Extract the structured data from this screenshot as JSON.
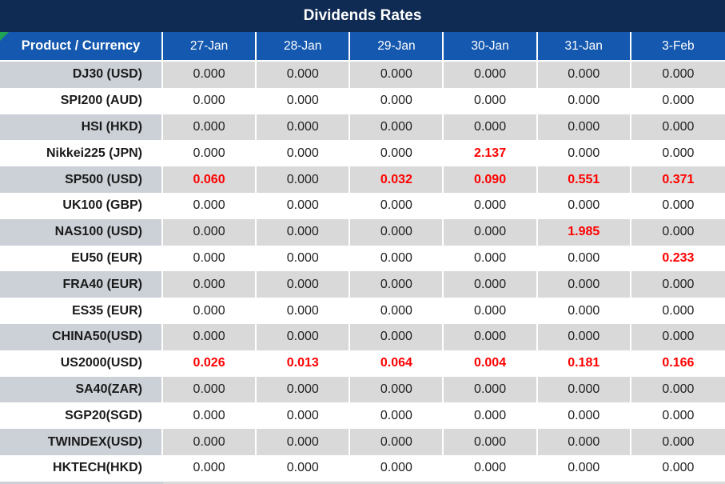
{
  "title": "Dividends Rates",
  "table": {
    "product_header": "Product / Currency",
    "date_columns": [
      "27-Jan",
      "28-Jan",
      "29-Jan",
      "30-Jan",
      "31-Jan",
      "3-Feb"
    ],
    "rows": [
      {
        "product": "DJ30 (USD)",
        "values": [
          "0.000",
          "0.000",
          "0.000",
          "0.000",
          "0.000",
          "0.000"
        ],
        "red": []
      },
      {
        "product": "SPI200 (AUD)",
        "values": [
          "0.000",
          "0.000",
          "0.000",
          "0.000",
          "0.000",
          "0.000"
        ],
        "red": []
      },
      {
        "product": "HSI (HKD)",
        "values": [
          "0.000",
          "0.000",
          "0.000",
          "0.000",
          "0.000",
          "0.000"
        ],
        "red": []
      },
      {
        "product": "Nikkei225 (JPN)",
        "values": [
          "0.000",
          "0.000",
          "0.000",
          "2.137",
          "0.000",
          "0.000"
        ],
        "red": [
          3
        ]
      },
      {
        "product": "SP500 (USD)",
        "values": [
          "0.060",
          "0.000",
          "0.032",
          "0.090",
          "0.551",
          "0.371"
        ],
        "red": [
          0,
          2,
          3,
          4,
          5
        ]
      },
      {
        "product": "UK100 (GBP)",
        "values": [
          "0.000",
          "0.000",
          "0.000",
          "0.000",
          "0.000",
          "0.000"
        ],
        "red": []
      },
      {
        "product": "NAS100 (USD)",
        "values": [
          "0.000",
          "0.000",
          "0.000",
          "0.000",
          "1.985",
          "0.000"
        ],
        "red": [
          4
        ]
      },
      {
        "product": "EU50 (EUR)",
        "values": [
          "0.000",
          "0.000",
          "0.000",
          "0.000",
          "0.000",
          "0.233"
        ],
        "red": [
          5
        ]
      },
      {
        "product": "FRA40 (EUR)",
        "values": [
          "0.000",
          "0.000",
          "0.000",
          "0.000",
          "0.000",
          "0.000"
        ],
        "red": []
      },
      {
        "product": "ES35 (EUR)",
        "values": [
          "0.000",
          "0.000",
          "0.000",
          "0.000",
          "0.000",
          "0.000"
        ],
        "red": []
      },
      {
        "product": "CHINA50(USD)",
        "values": [
          "0.000",
          "0.000",
          "0.000",
          "0.000",
          "0.000",
          "0.000"
        ],
        "red": []
      },
      {
        "product": "US2000(USD)",
        "values": [
          "0.026",
          "0.013",
          "0.064",
          "0.004",
          "0.181",
          "0.166"
        ],
        "red": [
          0,
          1,
          2,
          3,
          4,
          5
        ]
      },
      {
        "product": "SA40(ZAR)",
        "values": [
          "0.000",
          "0.000",
          "0.000",
          "0.000",
          "0.000",
          "0.000"
        ],
        "red": []
      },
      {
        "product": "SGP20(SGD)",
        "values": [
          "0.000",
          "0.000",
          "0.000",
          "0.000",
          "0.000",
          "0.000"
        ],
        "red": []
      },
      {
        "product": "TWINDEX(USD)",
        "values": [
          "0.000",
          "0.000",
          "0.000",
          "0.000",
          "0.000",
          "0.000"
        ],
        "red": []
      },
      {
        "product": "HKTECH(HKD)",
        "values": [
          "0.000",
          "0.000",
          "0.000",
          "0.000",
          "0.000",
          "0.000"
        ],
        "red": []
      }
    ]
  },
  "colors": {
    "title_bg": "#0f2a53",
    "header_bg": "#1458af",
    "stripe_product_bg": "#ccd1d7",
    "stripe_value_bg": "#d9d9d9",
    "value_text": "#212121",
    "product_text": "#1a1a1a",
    "highlight_text": "#ff0000",
    "corner_triangle": "#21a355"
  }
}
